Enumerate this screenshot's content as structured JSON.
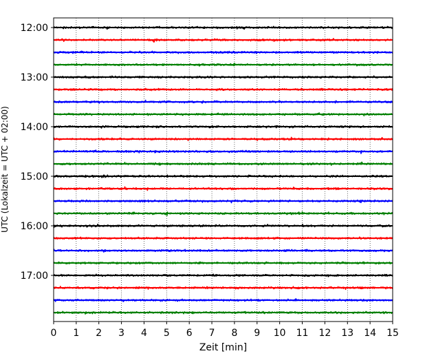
{
  "chart_data": {
    "type": "line",
    "title": "",
    "xlabel": "Zeit  [min]",
    "ylabel": "UTC (Lokalzeit = UTC + 02:00)",
    "xlim": [
      0,
      15
    ],
    "x_ticks": [
      "0",
      "1",
      "2",
      "3",
      "4",
      "5",
      "6",
      "7",
      "8",
      "9",
      "10",
      "11",
      "12",
      "13",
      "14",
      "15"
    ],
    "y_ticks": [
      "12:00",
      "13:00",
      "14:00",
      "15:00",
      "16:00",
      "17:00"
    ],
    "grid": "vertical-dotted",
    "trace_colors": [
      "#000000",
      "#ff0000",
      "#0000ff",
      "#008000"
    ],
    "rows": [
      {
        "start": "12:00",
        "color": "#000000"
      },
      {
        "start": "12:15",
        "color": "#ff0000",
        "events": [
          {
            "x": 4.45,
            "amp": 2.4
          }
        ]
      },
      {
        "start": "12:30",
        "color": "#0000ff"
      },
      {
        "start": "12:45",
        "color": "#008000"
      },
      {
        "start": "13:00",
        "color": "#000000"
      },
      {
        "start": "13:15",
        "color": "#ff0000"
      },
      {
        "start": "13:30",
        "color": "#0000ff",
        "events": [
          {
            "x": 12.55,
            "amp": 1.6
          }
        ]
      },
      {
        "start": "13:45",
        "color": "#008000"
      },
      {
        "start": "14:00",
        "color": "#000000",
        "events": [
          {
            "x": 2.15,
            "amp": 1.6
          },
          {
            "x": 10.5,
            "amp": 1.2
          }
        ]
      },
      {
        "start": "14:15",
        "color": "#ff0000"
      },
      {
        "start": "14:30",
        "color": "#0000ff",
        "events": [
          {
            "x": 4.5,
            "amp": 1.2
          },
          {
            "x": 1.3,
            "amp": 1.0
          }
        ]
      },
      {
        "start": "14:45",
        "color": "#008000",
        "events": [
          {
            "x": 8.75,
            "amp": 1.0
          }
        ]
      },
      {
        "start": "15:00",
        "color": "#000000",
        "events": [
          {
            "x": 2.2,
            "amp": 2.0
          }
        ]
      },
      {
        "start": "15:15",
        "color": "#ff0000"
      },
      {
        "start": "15:30",
        "color": "#0000ff",
        "events": [
          {
            "x": 13.55,
            "amp": 1.6
          }
        ]
      },
      {
        "start": "15:45",
        "color": "#008000",
        "events": [
          {
            "x": 4.95,
            "amp": 2.6
          }
        ]
      },
      {
        "start": "16:00",
        "color": "#000000"
      },
      {
        "start": "16:15",
        "color": "#ff0000"
      },
      {
        "start": "16:30",
        "color": "#0000ff"
      },
      {
        "start": "16:45",
        "color": "#008000"
      },
      {
        "start": "17:00",
        "color": "#000000"
      },
      {
        "start": "17:15",
        "color": "#ff0000"
      },
      {
        "start": "17:30",
        "color": "#0000ff"
      },
      {
        "start": "17:45",
        "color": "#008000"
      }
    ]
  }
}
